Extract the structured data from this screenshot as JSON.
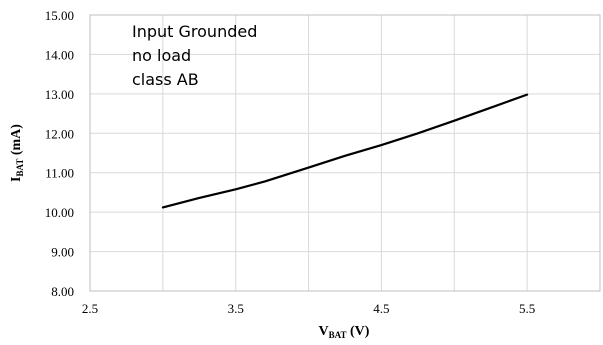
{
  "chart_data": {
    "type": "line",
    "title": "",
    "xlabel": {
      "main": "V",
      "sub": "BAT",
      "unit": " (V)"
    },
    "ylabel": {
      "main": "I",
      "sub": "BAT",
      "unit": " (mA)"
    },
    "xlim": [
      2.5,
      6.0
    ],
    "ylim": [
      8.0,
      15.0
    ],
    "x_ticks": [
      2.5,
      3.5,
      4.5,
      5.5
    ],
    "x_tick_labels": [
      "2.5",
      "3.5",
      "4.5",
      "5.5"
    ],
    "x_gridlines": [
      2.5,
      3.0,
      3.5,
      4.0,
      4.5,
      5.0,
      5.5,
      6.0
    ],
    "y_ticks": [
      8,
      9,
      10,
      11,
      12,
      13,
      14,
      15
    ],
    "y_tick_labels": [
      "8.00",
      "9.00",
      "10.00",
      "11.00",
      "12.00",
      "13.00",
      "14.00",
      "15.00"
    ],
    "grid": true,
    "annotations": [
      "Input Grounded",
      "no load",
      "class AB"
    ],
    "series": [
      {
        "color": "#000000",
        "x": [
          3.0,
          3.25,
          3.5,
          3.7,
          4.0,
          4.25,
          4.5,
          4.75,
          5.0,
          5.25,
          5.5
        ],
        "y": [
          10.12,
          10.36,
          10.58,
          10.78,
          11.13,
          11.43,
          11.7,
          12.0,
          12.32,
          12.65,
          12.98
        ]
      }
    ]
  }
}
